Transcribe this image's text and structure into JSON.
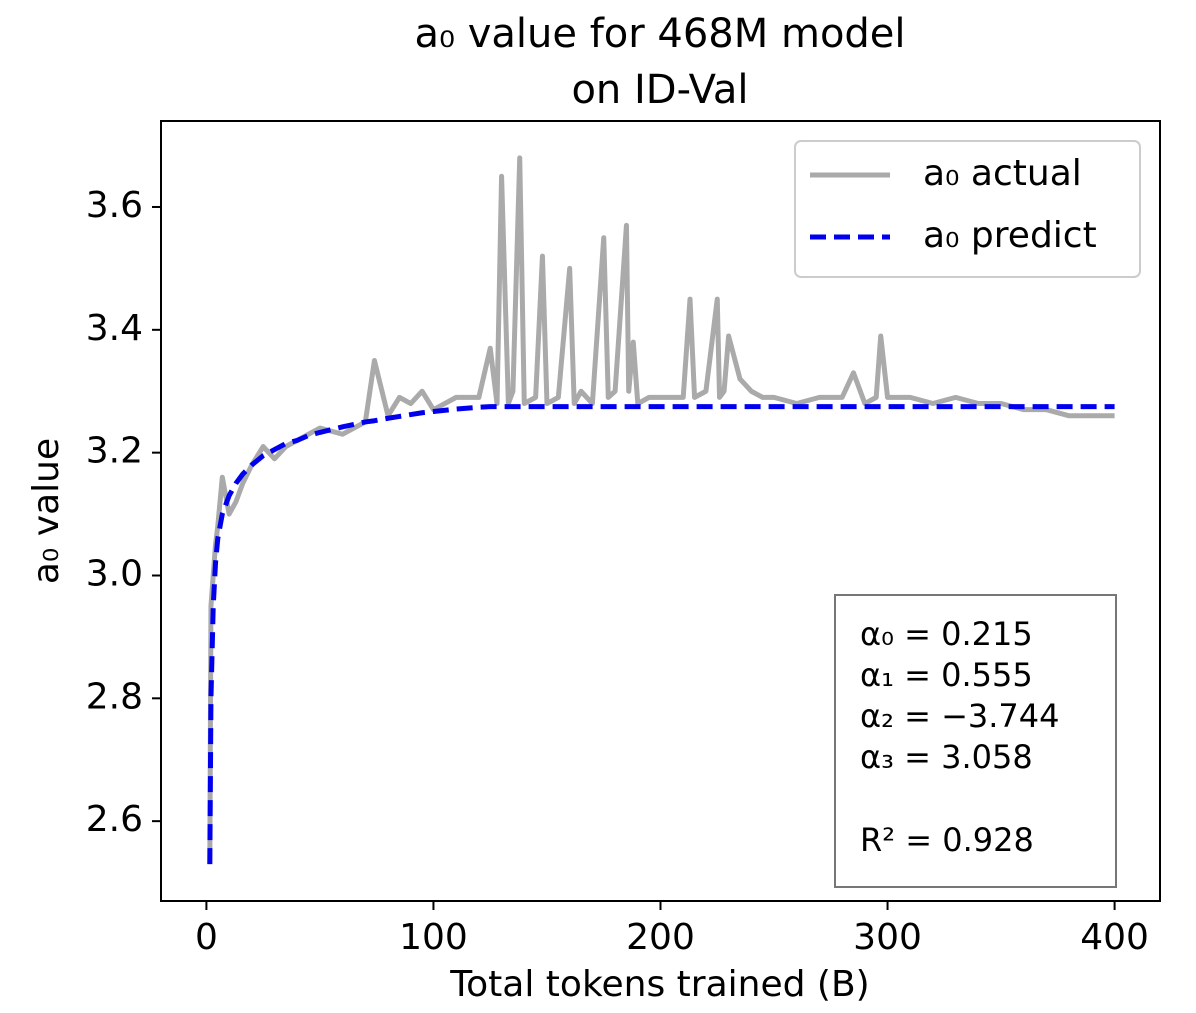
{
  "chart_data": {
    "type": "line",
    "title": [
      "a₀ value for 468M model",
      "on ID-Val"
    ],
    "xlabel": "Total tokens trained (B)",
    "ylabel": "a₀ value",
    "x": [
      1.5,
      2,
      3,
      4,
      5,
      7,
      10,
      13,
      16,
      20,
      25,
      30,
      35,
      40,
      45,
      50,
      60,
      70,
      74,
      80,
      85,
      90,
      95,
      100,
      110,
      120,
      125,
      128,
      130,
      133,
      135,
      138,
      140,
      145,
      148,
      150,
      155,
      160,
      162,
      165,
      170,
      175,
      177,
      180,
      185,
      186,
      188,
      190,
      195,
      200,
      210,
      213,
      215,
      220,
      225,
      226,
      228,
      230,
      235,
      240,
      245,
      250,
      260,
      270,
      280,
      285,
      290,
      295,
      297,
      300,
      310,
      320,
      330,
      340,
      350,
      360,
      370,
      380,
      390,
      400
    ],
    "series": [
      {
        "name": "a₀ actual",
        "color": "#aaaaaa",
        "dashed": false,
        "values": [
          2.53,
          2.95,
          3.0,
          3.05,
          3.08,
          3.16,
          3.1,
          3.12,
          3.15,
          3.18,
          3.21,
          3.19,
          3.21,
          3.22,
          3.23,
          3.24,
          3.23,
          3.25,
          3.35,
          3.26,
          3.29,
          3.28,
          3.3,
          3.27,
          3.29,
          3.29,
          3.37,
          3.28,
          3.65,
          3.28,
          3.3,
          3.68,
          3.28,
          3.29,
          3.52,
          3.28,
          3.29,
          3.5,
          3.28,
          3.3,
          3.28,
          3.55,
          3.29,
          3.3,
          3.57,
          3.3,
          3.38,
          3.28,
          3.29,
          3.29,
          3.29,
          3.45,
          3.29,
          3.3,
          3.45,
          3.29,
          3.3,
          3.39,
          3.32,
          3.3,
          3.29,
          3.29,
          3.28,
          3.29,
          3.29,
          3.33,
          3.28,
          3.29,
          3.39,
          3.29,
          3.29,
          3.28,
          3.29,
          3.28,
          3.28,
          3.27,
          3.27,
          3.26,
          3.26,
          3.26
        ]
      },
      {
        "name": "a₀ predict",
        "color": "#0000ee",
        "dashed": true,
        "values": [
          2.53,
          2.8,
          2.95,
          3.02,
          3.06,
          3.1,
          3.13,
          3.15,
          3.165,
          3.18,
          3.195,
          3.205,
          3.215,
          3.22,
          3.228,
          3.233,
          3.242,
          3.25,
          3.252,
          3.256,
          3.259,
          3.262,
          3.265,
          3.267,
          3.271,
          3.274,
          3.275,
          3.275,
          3.275,
          3.275,
          3.275,
          3.275,
          3.275,
          3.275,
          3.275,
          3.275,
          3.275,
          3.275,
          3.275,
          3.275,
          3.275,
          3.275,
          3.275,
          3.275,
          3.275,
          3.275,
          3.275,
          3.275,
          3.275,
          3.275,
          3.275,
          3.275,
          3.275,
          3.275,
          3.275,
          3.275,
          3.275,
          3.275,
          3.275,
          3.275,
          3.275,
          3.275,
          3.275,
          3.275,
          3.275,
          3.275,
          3.275,
          3.275,
          3.275,
          3.275,
          3.275,
          3.275,
          3.275,
          3.275,
          3.275,
          3.275,
          3.275,
          3.275,
          3.275,
          3.275
        ]
      }
    ],
    "xlim": [
      -20,
      420
    ],
    "ylim": [
      2.47,
      3.74
    ],
    "xticks": [
      0,
      100,
      200,
      300,
      400
    ],
    "yticks": [
      2.6,
      2.8,
      {
        "value": 3,
        "label": "3.0"
      },
      3.2,
      3.4,
      3.6
    ],
    "legend": "upper right",
    "annotation": [
      "α₀ = 0.215",
      "α₁ = 0.555",
      "α₂ = −3.744",
      "α₃ = 3.058",
      "R² = 0.928"
    ]
  }
}
